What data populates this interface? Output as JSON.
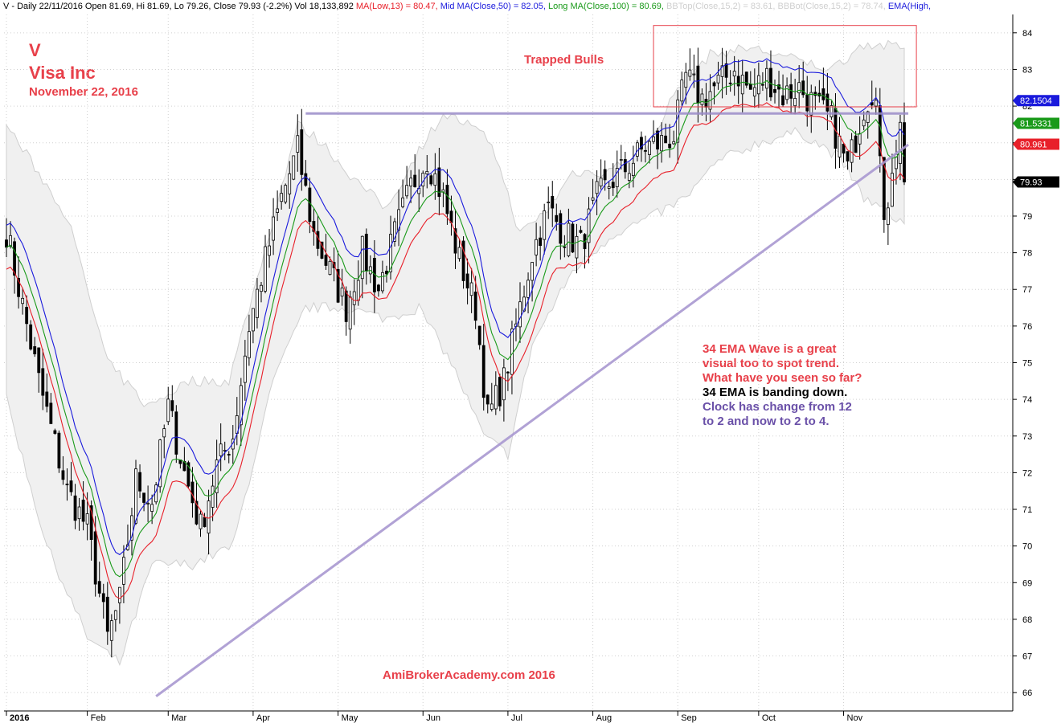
{
  "header": {
    "symbol_line": "V - Daily 22/11/2016 Open 81.69, Hi 81.69, Lo 79.26, Close 79.93 (-2.2%) Vol 18,133,892",
    "ma_low": "MA(Low,13) = 80.47,",
    "mid_ma": "Mid MA(Close,50) = 82.05,",
    "long_ma": "Long MA(Close,100) = 80.69,",
    "bbtop": "BBTop(Close,15,2) = 83.61,",
    "bbbot": "BBBot(Close,15,2) = 78.74,",
    "ema": "EMA(High,"
  },
  "colors": {
    "ma_low": "#e8202a",
    "mid_ma": "#1a1adc",
    "long_ma": "#1a9a1a",
    "bb": "#c8c8c8",
    "ema_label": "#1a1adc",
    "annotation_red": "#e8404a",
    "annotation_purple": "#6a50a8",
    "trendline": "#a898d0"
  },
  "annotations": {
    "ticker": "V",
    "company": "Visa Inc",
    "date": "November 22, 2016",
    "trapped_bulls": "Trapped Bulls",
    "note_red": "34 EMA Wave is a great visual too to spot trend. What have you seen so far?",
    "note_black": "34 EMA is banding down.",
    "note_purple": "Clock has change from 12 to 2 and now to  2 to 4.",
    "watermark": "AmiBrokerAcademy.com  2016"
  },
  "chart_data": {
    "type": "candlestick",
    "title": "V Visa Inc",
    "ylim": [
      65.5,
      84.5
    ],
    "y_ticks": [
      66,
      67,
      68,
      69,
      70,
      71,
      72,
      73,
      74,
      75,
      76,
      77,
      78,
      79,
      80,
      81,
      82,
      83,
      84
    ],
    "x_labels": [
      "2016",
      "Feb",
      "Mar",
      "Apr",
      "May",
      "Jun",
      "Jul",
      "Aug",
      "Sep",
      "Oct",
      "Nov"
    ],
    "x_label_index": [
      0,
      20,
      40,
      61,
      82,
      103,
      124,
      145,
      166,
      186,
      207
    ],
    "n_bars": 223,
    "price_tags": [
      {
        "label": "82.1504",
        "value": 82.15,
        "color": "#1a1adc"
      },
      {
        "label": "81.5331",
        "value": 81.53,
        "color": "#1a9a1a"
      },
      {
        "label": "80.961",
        "value": 80.96,
        "color": "#e8202a"
      },
      {
        "label": "79.93",
        "value": 79.93,
        "color": "#000000"
      }
    ],
    "close_anchors": [
      [
        0,
        78.6
      ],
      [
        8,
        74.5
      ],
      [
        15,
        71.5
      ],
      [
        20,
        70.5
      ],
      [
        25,
        67.5
      ],
      [
        28,
        68.5
      ],
      [
        32,
        71.8
      ],
      [
        36,
        71.2
      ],
      [
        40,
        73.8
      ],
      [
        44,
        72.0
      ],
      [
        48,
        70.5
      ],
      [
        52,
        72.2
      ],
      [
        56,
        73.0
      ],
      [
        60,
        76.0
      ],
      [
        64,
        77.8
      ],
      [
        68,
        79.5
      ],
      [
        72,
        80.8
      ],
      [
        76,
        78.5
      ],
      [
        80,
        77.5
      ],
      [
        84,
        76.5
      ],
      [
        88,
        78.0
      ],
      [
        92,
        77.0
      ],
      [
        96,
        78.5
      ],
      [
        100,
        79.8
      ],
      [
        104,
        80.6
      ],
      [
        108,
        79.5
      ],
      [
        112,
        77.8
      ],
      [
        116,
        76.5
      ],
      [
        119,
        73.5
      ],
      [
        123,
        74.5
      ],
      [
        126,
        76.0
      ],
      [
        130,
        78.0
      ],
      [
        134,
        79.2
      ],
      [
        138,
        78.5
      ],
      [
        142,
        78.2
      ],
      [
        146,
        79.5
      ],
      [
        150,
        80.0
      ],
      [
        154,
        80.4
      ],
      [
        158,
        80.9
      ],
      [
        162,
        81.0
      ],
      [
        165,
        81.2
      ],
      [
        168,
        82.8
      ],
      [
        172,
        82.2
      ],
      [
        176,
        82.6
      ],
      [
        180,
        83.0
      ],
      [
        184,
        82.4
      ],
      [
        188,
        82.8
      ],
      [
        192,
        82.3
      ],
      [
        196,
        82.5
      ],
      [
        200,
        82.0
      ],
      [
        204,
        81.6
      ],
      [
        208,
        80.3
      ],
      [
        212,
        82.0
      ],
      [
        215,
        82.6
      ],
      [
        217,
        78.5
      ],
      [
        219,
        80.5
      ],
      [
        221,
        81.4
      ],
      [
        222,
        79.93
      ]
    ],
    "bb_top_anchors": [
      [
        0,
        81.5
      ],
      [
        15,
        79.0
      ],
      [
        25,
        75.0
      ],
      [
        35,
        73.8
      ],
      [
        45,
        74.5
      ],
      [
        55,
        74.5
      ],
      [
        65,
        78.5
      ],
      [
        72,
        81.5
      ],
      [
        78,
        81.0
      ],
      [
        86,
        80.0
      ],
      [
        94,
        79.2
      ],
      [
        102,
        80.8
      ],
      [
        108,
        81.8
      ],
      [
        114,
        81.5
      ],
      [
        120,
        81.0
      ],
      [
        127,
        78.5
      ],
      [
        134,
        79.2
      ],
      [
        140,
        80.2
      ],
      [
        148,
        80.2
      ],
      [
        158,
        80.8
      ],
      [
        166,
        82.5
      ],
      [
        174,
        83.4
      ],
      [
        184,
        83.6
      ],
      [
        194,
        83.3
      ],
      [
        204,
        83.0
      ],
      [
        212,
        83.7
      ],
      [
        222,
        83.6
      ]
    ],
    "bb_bot_anchors": [
      [
        0,
        74.0
      ],
      [
        10,
        70.0
      ],
      [
        20,
        67.5
      ],
      [
        28,
        66.8
      ],
      [
        36,
        69.5
      ],
      [
        46,
        69.5
      ],
      [
        56,
        70.0
      ],
      [
        66,
        74.5
      ],
      [
        74,
        76.5
      ],
      [
        84,
        76.5
      ],
      [
        94,
        76.2
      ],
      [
        102,
        76.5
      ],
      [
        110,
        75.0
      ],
      [
        118,
        73.0
      ],
      [
        124,
        72.5
      ],
      [
        130,
        75.5
      ],
      [
        140,
        77.5
      ],
      [
        150,
        78.5
      ],
      [
        160,
        79.0
      ],
      [
        168,
        79.5
      ],
      [
        176,
        80.5
      ],
      [
        186,
        81.0
      ],
      [
        196,
        81.3
      ],
      [
        206,
        80.6
      ],
      [
        212,
        79.5
      ],
      [
        222,
        78.8
      ]
    ],
    "hline": {
      "value": 81.8,
      "x_start": 74,
      "x_end": 223
    },
    "trendline": {
      "x0": 37,
      "y0": 65.9,
      "x1": 223,
      "y1": 80.95
    },
    "box": {
      "x0": 160,
      "x1": 225,
      "y_top": 84.2,
      "y_bottom": 81.98
    }
  }
}
